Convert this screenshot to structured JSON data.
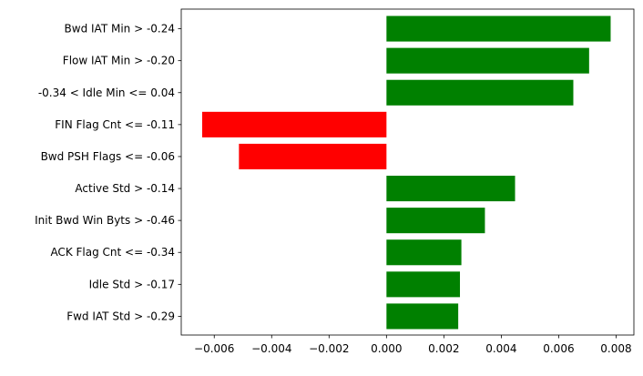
{
  "chart_data": {
    "type": "bar",
    "orientation": "horizontal",
    "categories": [
      "Bwd IAT Min > -0.24",
      "Flow IAT Min > -0.20",
      "-0.34 < Idle Min <= 0.04",
      "FIN Flag Cnt <= -0.11",
      "Bwd PSH Flags <= -0.06",
      "Active Std > -0.14",
      "Init Bwd Win Byts > -0.46",
      "ACK Flag Cnt <= -0.34",
      "Idle Std > -0.17",
      "Fwd IAT Std > -0.29"
    ],
    "values": [
      0.00781,
      0.00706,
      0.00651,
      -0.00642,
      -0.00514,
      0.00448,
      0.00343,
      0.00261,
      0.00256,
      0.0025
    ],
    "xlim": [
      -0.00715,
      0.00862
    ],
    "xticks": [
      -0.006,
      -0.004,
      -0.002,
      0.0,
      0.002,
      0.004,
      0.006,
      0.008
    ],
    "xtick_labels": [
      "−0.006",
      "−0.004",
      "−0.002",
      "0.000",
      "0.002",
      "0.004",
      "0.006",
      "0.008"
    ],
    "colors": {
      "positive": "#008000",
      "negative": "#ff0000"
    },
    "grid": false,
    "title": "",
    "xlabel": "",
    "ylabel": ""
  }
}
